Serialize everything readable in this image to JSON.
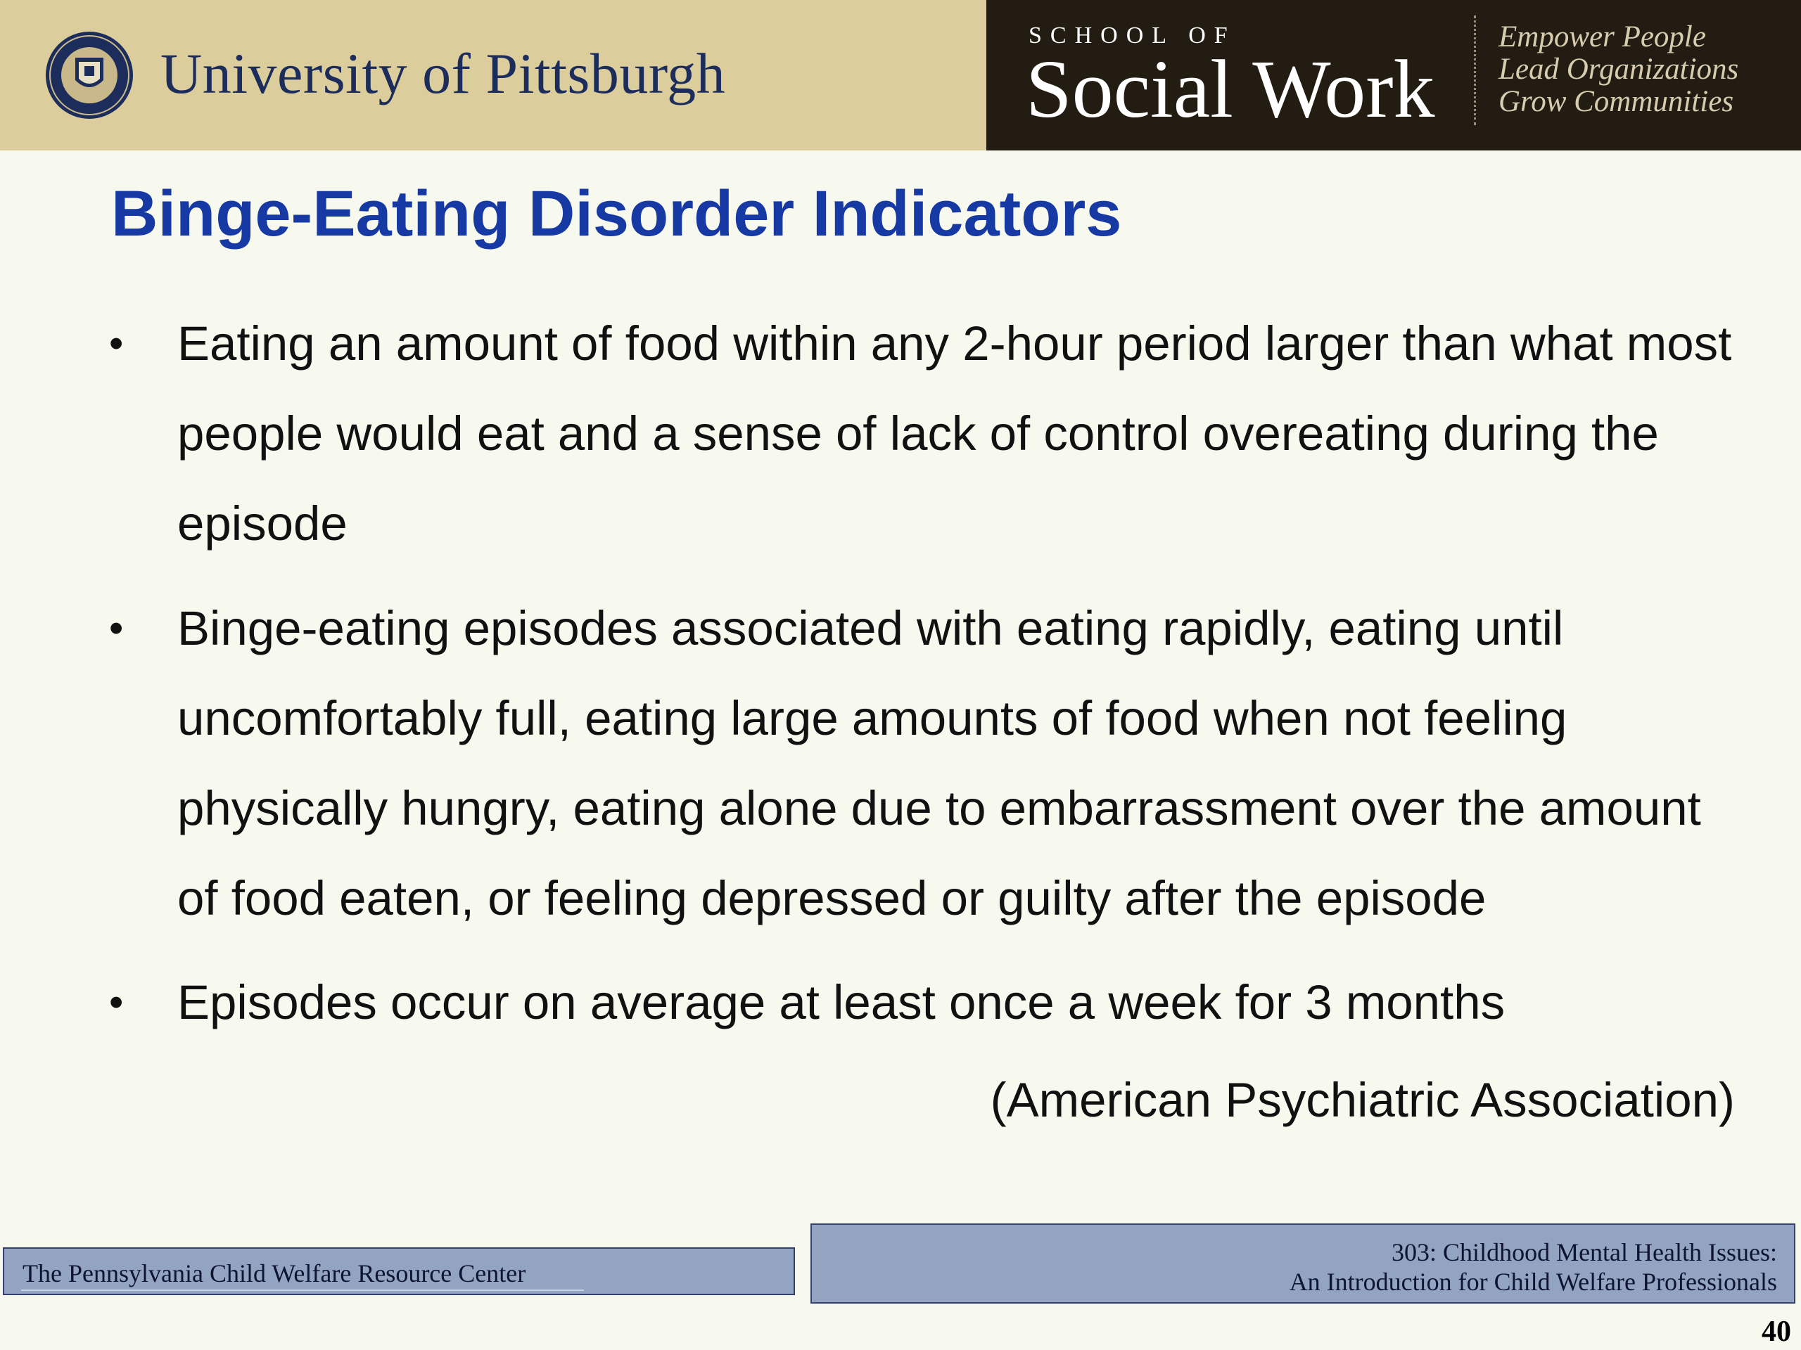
{
  "header": {
    "university": "University of Pittsburgh",
    "school_of": "SCHOOL OF",
    "school_name": "Social Work",
    "tagline": [
      "Empower People",
      "Lead Organizations",
      "Grow Communities"
    ],
    "seal_icon": "university-seal-icon",
    "colors": {
      "left_band": "#dccd9c",
      "right_band": "#231c12",
      "university_text": "#1c2c5b"
    }
  },
  "slide": {
    "title": "Binge-Eating Disorder Indicators",
    "title_color": "#1639a3",
    "bullets": [
      "Eating an amount of food within any 2-hour period larger than what most people would eat and a sense of lack of control overeating during the episode",
      "Binge-eating episodes associated with eating rapidly, eating until uncomfortably full, eating large amounts of food when not feeling physically hungry, eating alone due to embarrassment over the amount of food eaten, or feeling depressed or guilty after the episode",
      "Episodes occur on average at least once a week for 3 months"
    ],
    "bullet_symbol": "•",
    "citation": "(American Psychiatric Association)"
  },
  "footer": {
    "left_text": "The Pennsylvania Child Welfare Resource Center",
    "right_line1": "303: Childhood Mental Health Issues:",
    "right_line2": "An Introduction for Child Welfare Professionals",
    "box_color": "#93a4c2"
  },
  "page_number": "40"
}
